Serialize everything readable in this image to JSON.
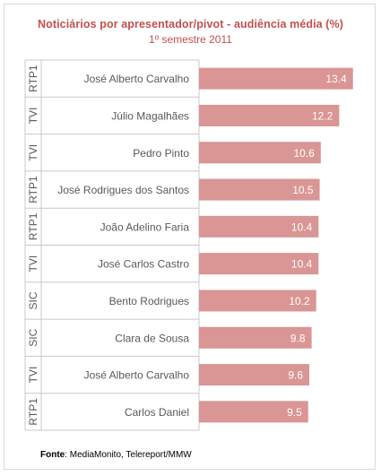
{
  "chart_data": {
    "type": "bar",
    "orientation": "horizontal",
    "title": "Noticiários por apresentador/pivot - audiência média (%)",
    "subtitle": "1º semestre 2011",
    "channels": [
      "RTP1",
      "TVI",
      "TVI",
      "RTP1",
      "RTP1",
      "TVI",
      "SIC",
      "SIC",
      "TVI",
      "RTP1"
    ],
    "categories": [
      "José Alberto Carvalho",
      "Júlio Magalhães",
      "Pedro Pinto",
      "José Rodrigues dos Santos",
      "João Adelino Faria",
      "José Carlos Castro",
      "Bento Rodrigues",
      "Clara de Sousa",
      "José Alberto Carvalho",
      "Carlos Daniel"
    ],
    "values": [
      13.4,
      12.2,
      10.6,
      10.5,
      10.4,
      10.4,
      10.2,
      9.8,
      9.6,
      9.5
    ],
    "value_labels": [
      "13.4",
      "12.2",
      "10.6",
      "10.5",
      "10.4",
      "10.4",
      "10.2",
      "9.8",
      "9.6",
      "9.5"
    ],
    "xlim": [
      0,
      14.2
    ],
    "grid": false,
    "legend": "none",
    "bar_color": "#d99694"
  },
  "source": {
    "label": "Fonte",
    "text": ": MediaMonito, Telereport/MMW"
  }
}
